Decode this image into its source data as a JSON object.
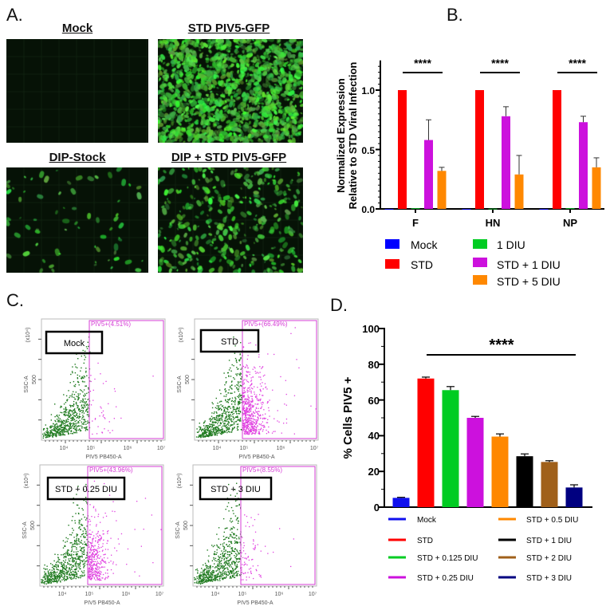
{
  "panels": {
    "a": "A.",
    "b": "B.",
    "c": "C.",
    "d": "D."
  },
  "panel_a": {
    "images": [
      {
        "label": "Mock",
        "signal_density": 0
      },
      {
        "label": "STD PIV5-GFP",
        "signal_density": 1
      },
      {
        "label": "DIP-Stock",
        "signal_density": 0.05
      },
      {
        "label": "DIP + STD PIV5-GFP",
        "signal_density": 0.25
      }
    ],
    "fluorescence_color": "#2ecc40"
  },
  "chart_data": [
    {
      "panel": "B",
      "type": "bar",
      "ylabel_line1": "Normalized Expression",
      "ylabel_line2": "Relative to STD Viral Infection",
      "categories": [
        "F",
        "HN",
        "NP"
      ],
      "ylim": [
        0,
        1.25
      ],
      "yticks": [
        "0.0",
        "0.5",
        "1.0"
      ],
      "significance": [
        "****",
        "****",
        "****"
      ],
      "series": [
        {
          "name": "Mock",
          "color": "#0000ff",
          "values": [
            0,
            0,
            0
          ],
          "errors": [
            0,
            0,
            0
          ]
        },
        {
          "name": "STD",
          "color": "#ff0000",
          "values": [
            1.0,
            1.0,
            1.0
          ],
          "errors": [
            0,
            0,
            0
          ]
        },
        {
          "name": "1 DIU",
          "color": "#00cc22",
          "values": [
            0.005,
            0.002,
            0.005
          ],
          "errors": [
            0,
            0,
            0
          ]
        },
        {
          "name": "STD + 1  DIU",
          "color": "#cc11dd",
          "values": [
            0.58,
            0.78,
            0.73
          ],
          "errors": [
            0.17,
            0.08,
            0.05
          ]
        },
        {
          "name": "STD + 5  DIU",
          "color": "#ff8800",
          "values": [
            0.32,
            0.29,
            0.35
          ],
          "errors": [
            0.03,
            0.16,
            0.08
          ]
        }
      ],
      "legend": "bottom",
      "grid": false
    },
    {
      "panel": "D",
      "type": "bar",
      "ylabel": "% Cells  PIV5 +",
      "ylim": [
        0,
        100
      ],
      "yticks": [
        "0",
        "20",
        "40",
        "60",
        "80",
        "100"
      ],
      "significance": "****",
      "categories": [
        "Mock",
        "STD",
        "STD + 0.125 DIU",
        "STD + 0.25 DIU",
        "STD + 0.5 DIU",
        "STD + 1 DIU",
        "STD + 2 DIU",
        "STD + 3 DIU"
      ],
      "values": [
        5.2,
        72,
        65.5,
        50,
        39.5,
        28.5,
        25.3,
        11
      ],
      "errors": [
        0.3,
        0.8,
        2,
        0.8,
        1.5,
        1.3,
        0.7,
        1.5
      ],
      "colors": [
        "#1010ee",
        "#ff0000",
        "#00cc22",
        "#cc11dd",
        "#ff8800",
        "#000000",
        "#a0601a",
        "#000080"
      ],
      "legend": "bottom",
      "grid": false
    },
    {
      "panel": "C",
      "type": "scatter",
      "xlabel": "PIV5 PB450-A",
      "ylabel": "SSC-A",
      "y_multiplier": "(x10⁴)",
      "ytick": "500",
      "xticks": [
        "10⁴",
        "10⁵",
        "10⁶",
        "10⁷"
      ],
      "negative_color": "#1f7a1f",
      "gate_color": "#d63cd6",
      "plots": [
        {
          "sample": "Mock",
          "gate_label": "PIV5+(4.51%)",
          "percent_positive": 4.51
        },
        {
          "sample": "STD",
          "gate_label": "PIV5+(66.49%)",
          "percent_positive": 66.49
        },
        {
          "sample": "STD + 0.25 DIU",
          "gate_label": "PIV5+(43.96%)",
          "percent_positive": 43.96
        },
        {
          "sample": "STD + 3 DIU",
          "gate_label": "PIV5+(8.55%)",
          "percent_positive": 8.55
        }
      ]
    }
  ]
}
